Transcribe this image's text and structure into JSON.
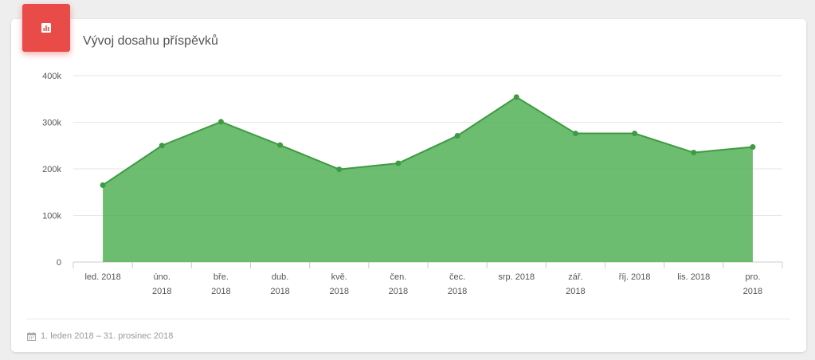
{
  "header": {
    "title": "Vývoj dosahu příspěvků",
    "icon": "bar-chart-icon",
    "icon_color": "#e84b48"
  },
  "footer": {
    "icon": "calendar-icon",
    "date_range": "1. leden 2018 – 31. prosinec 2018"
  },
  "chart_data": {
    "type": "area",
    "title": "Vývoj dosahu příspěvků",
    "categories": [
      [
        "led. 2018"
      ],
      [
        "úno.",
        "2018"
      ],
      [
        "bře.",
        "2018"
      ],
      [
        "dub.",
        "2018"
      ],
      [
        "kvě.",
        "2018"
      ],
      [
        "čen.",
        "2018"
      ],
      [
        "čec.",
        "2018"
      ],
      [
        "srp. 2018"
      ],
      [
        "zář.",
        "2018"
      ],
      [
        "říj. 2018"
      ],
      [
        "lis. 2018"
      ],
      [
        "pro.",
        "2018"
      ]
    ],
    "series": [
      {
        "values": [
          165000,
          250000,
          301000,
          251000,
          199000,
          212000,
          271000,
          354000,
          276000,
          276000,
          235000,
          247000
        ],
        "color": "#4caf50"
      }
    ],
    "ylim": [
      0,
      400000
    ],
    "yticks": [
      0,
      100000,
      200000,
      300000,
      400000
    ],
    "ytick_labels": [
      "0",
      "100k",
      "200k",
      "300k",
      "400k"
    ],
    "grid": true
  }
}
